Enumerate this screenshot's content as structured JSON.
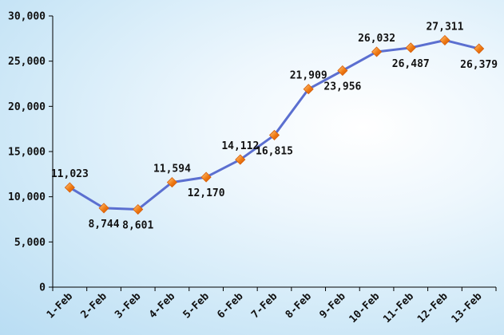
{
  "chart_data": {
    "type": "line",
    "title": "",
    "xlabel": "",
    "ylabel": "",
    "categories": [
      "1-Feb",
      "2-Feb",
      "3-Feb",
      "4-Feb",
      "5-Feb",
      "6-Feb",
      "7-Feb",
      "8-Feb",
      "9-Feb",
      "10-Feb",
      "11-Feb",
      "12-Feb",
      "13-Feb"
    ],
    "series": [
      {
        "values": [
          11023,
          8744,
          8601,
          11594,
          12170,
          14112,
          16815,
          21909,
          23956,
          26032,
          26487,
          27311,
          26379
        ],
        "labels": [
          "11,023",
          "8,744",
          "8,601",
          "11,594",
          "12,170",
          "14,112",
          "16,815",
          "21,909",
          "23,956",
          "26,032",
          "26,487",
          "27,311",
          "26,379"
        ],
        "label_positions": [
          "above",
          "below",
          "below",
          "above",
          "below",
          "above",
          "below",
          "above",
          "below",
          "above",
          "below",
          "above",
          "below"
        ],
        "line_color": "#5b6fd0",
        "marker_color": "#f07a12",
        "marker_shape": "diamond"
      }
    ],
    "ylim": [
      0,
      30000
    ],
    "y_ticks": [
      0,
      5000,
      10000,
      15000,
      20000,
      25000,
      30000
    ],
    "y_tick_labels": [
      "0",
      "5,000",
      "10,000",
      "15,000",
      "20,000",
      "25,000",
      "30,000"
    ],
    "grid": false,
    "legend": "none",
    "axis_color": "#000000"
  }
}
